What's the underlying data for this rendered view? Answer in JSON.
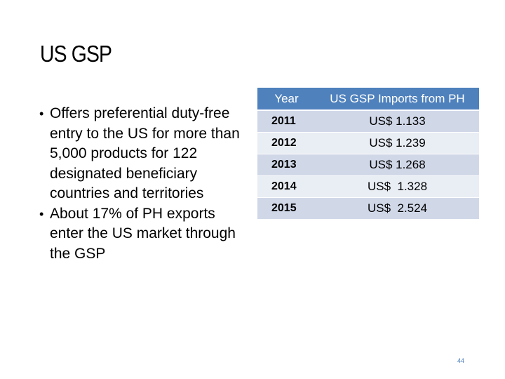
{
  "slide": {
    "title": "US GSP",
    "page_number": "44"
  },
  "bullets": [
    "Offers preferential duty-free entry to the US for more than 5,000 products for 122 designated beneficiary countries and territories",
    "About 17%  of PH exports enter the US market through the GSP"
  ],
  "bullet_symbol": "•",
  "table": {
    "headers": [
      "Year",
      "US GSP Imports from PH"
    ],
    "rows": [
      {
        "year": "2011",
        "value": "US$ 1.133"
      },
      {
        "year": "2012",
        "value": "US$ 1.239"
      },
      {
        "year": "2013",
        "value": "US$ 1.268"
      },
      {
        "year": "2014",
        "value": "US$  1.328"
      },
      {
        "year": "2015",
        "value": "US$  2.524"
      }
    ]
  },
  "colors": {
    "header_bg": "#4f81bd",
    "row_even": "#d0d8e8",
    "row_odd": "#e9edf4"
  }
}
